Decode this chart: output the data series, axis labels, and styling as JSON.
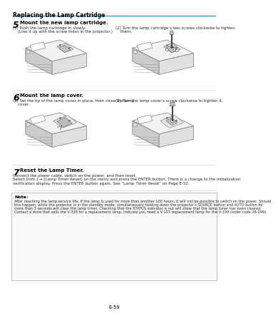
{
  "page_title": "Replacing the Lamp Cartridge",
  "header_line_color": "#3399cc",
  "bg_color": "#ffffff",
  "step5_num": "5",
  "step5_title": "Mount the new lamp cartridge.",
  "step5_1a": "(1) Push the lamp cartridge in slowly.",
  "step5_1b": "    (Line it up with the screw holes in the projector.)",
  "step5_2a": "(2) Turn the lamp cartridge’s two screws clockwise to tighten",
  "step5_2b": "    them.",
  "step6_num": "6",
  "step6_title": "Mount the lamp cover.",
  "step6_1a": "(1) Set the tip of the lamp cover in place, then close the lamp",
  "step6_1b": "    cover.",
  "step6_2": "(2) Turn the lamp cover’s screw clockwise to tighten it.",
  "step7_num": "7",
  "step7_title": "Reset the Lamp Timer.",
  "step7_line1": "Connect the power cable, switch on the power, and then reset.",
  "step7_line2": "Select [Info.] → [Lamp Timer Reset] on the menu and press the ENTER button. There is a change to the initialization",
  "step7_line3": "verification display. Press the ENTER button again. See “Lamp Timer Reset” on Page E-52.",
  "note_title": "Note:",
  "note_line1": "After reaching the lamp service life, if the lamp is used for more than another 100 hours, it will not be possible to switch on the power. Should",
  "note_line2": "this happen, while the projector is in the standby mode, simultaneously holding down the projector’s SOURCE button and AUTO button for",
  "note_line3": "more than 3 seconds will clear the lamp timer. Checking that the STATUS indicator is out will show that the lamp timer has been cleared.",
  "note_line4": "Contact a store that sells the V-339 for a replacement lamp. Indicate you need a V-123 replacement lamp for the V-339 (order code 28-099).",
  "footer": "E-59",
  "body_text_color": "#222222",
  "light_gray": "#dddddd",
  "mid_gray": "#aaaaaa",
  "dark_gray": "#666666",
  "proj_body_fill": "#f2f2f2",
  "proj_body_edge": "#888888",
  "proj_detail_fill": "#e0e0e0",
  "proj_shadow_fill": "#cccccc"
}
